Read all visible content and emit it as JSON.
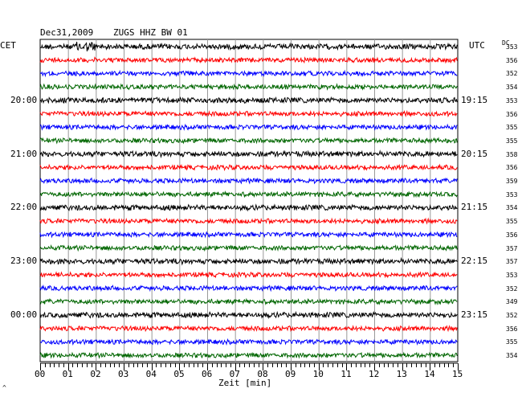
{
  "header": {
    "date": "Dec31,2009",
    "station": "ZUGS HHZ BW 01"
  },
  "left_timezone": "CET",
  "right_timezone": "UTC",
  "dc_label": "DC",
  "xlabel": "Zeit [min]",
  "corner_mark": "^",
  "chart_data": {
    "type": "line",
    "title": "Dec31,2009   ZUGS HHZ BW 01",
    "xlabel": "Zeit [min]",
    "x_ticks": [
      "00",
      "01",
      "02",
      "03",
      "04",
      "05",
      "06",
      "07",
      "08",
      "09",
      "10",
      "11",
      "12",
      "13",
      "14",
      "15"
    ],
    "xlim": [
      0,
      15
    ],
    "grid": true,
    "trace_count": 24,
    "trace_colors": [
      "#000000",
      "#ff0000",
      "#0000ff",
      "#006600"
    ],
    "left_hour_labels": [
      {
        "trace": 4,
        "label": "20:00"
      },
      {
        "trace": 8,
        "label": "21:00"
      },
      {
        "trace": 12,
        "label": "22:00"
      },
      {
        "trace": 16,
        "label": "23:00"
      },
      {
        "trace": 20,
        "label": "00:00"
      }
    ],
    "right_hour_labels": [
      {
        "trace": 4,
        "label": "19:15"
      },
      {
        "trace": 8,
        "label": "20:15"
      },
      {
        "trace": 12,
        "label": "21:15"
      },
      {
        "trace": 16,
        "label": "22:15"
      },
      {
        "trace": 20,
        "label": "23:15"
      }
    ],
    "dc_offsets": [
      "353",
      "356",
      "352",
      "354",
      "353",
      "356",
      "355",
      "355",
      "358",
      "356",
      "359",
      "353",
      "354",
      "355",
      "356",
      "357",
      "357",
      "353",
      "352",
      "349",
      "352",
      "356",
      "355",
      "354"
    ]
  }
}
